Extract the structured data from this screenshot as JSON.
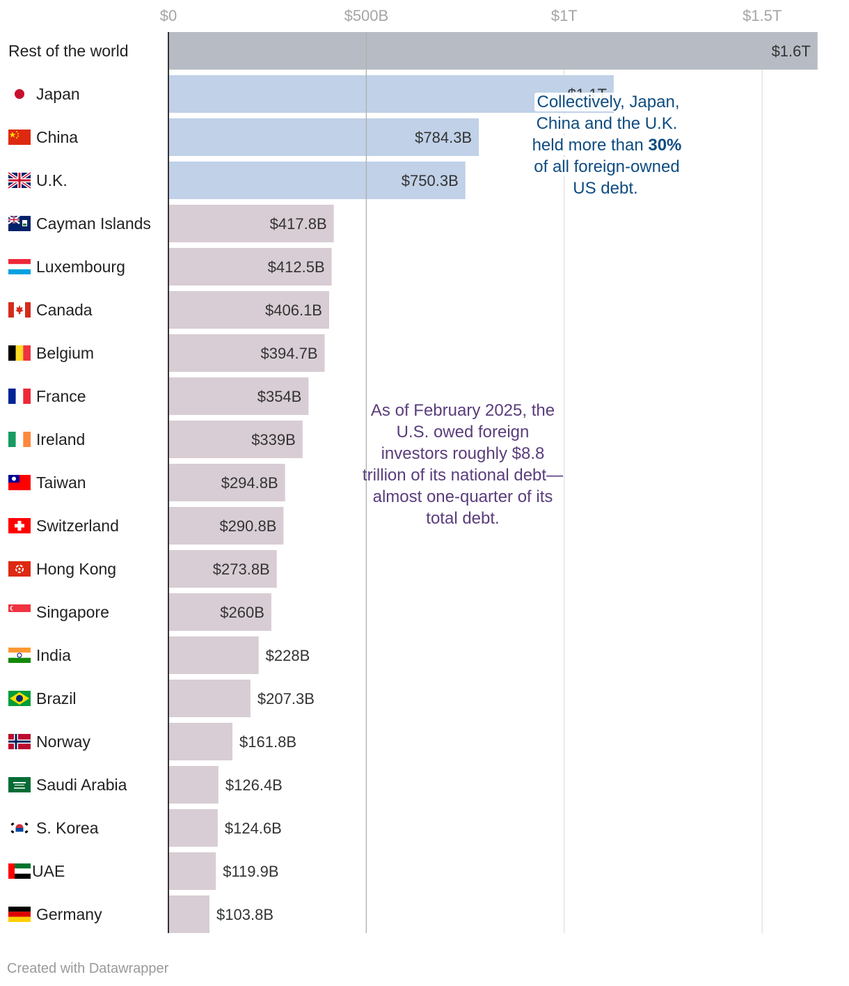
{
  "chart_data": {
    "type": "bar",
    "orientation": "horizontal",
    "title": "",
    "xlabel": "",
    "ylabel": "",
    "xlim": [
      0,
      1640
    ],
    "ticks": [
      {
        "value": 0,
        "label": "$0"
      },
      {
        "value": 500,
        "label": "$500B"
      },
      {
        "value": 1000,
        "label": "$1T"
      },
      {
        "value": 1500,
        "label": "$1.5T"
      }
    ],
    "unit": "billions USD",
    "rows": [
      {
        "name": "Rest of the world",
        "value": 1640,
        "label": "$1.6T",
        "group": "rest",
        "flag": ""
      },
      {
        "name": "Japan",
        "value": 1125,
        "label": "$1.1T",
        "group": "top3",
        "flag": "japan-flag-icon"
      },
      {
        "name": "China",
        "value": 784.3,
        "label": "$784.3B",
        "group": "top3",
        "flag": "china-flag-icon"
      },
      {
        "name": "U.K.",
        "value": 750.3,
        "label": "$750.3B",
        "group": "top3",
        "flag": "uk-flag-icon"
      },
      {
        "name": "Cayman Islands",
        "value": 417.8,
        "label": "$417.8B",
        "group": "other",
        "flag": "cayman-islands-flag-icon"
      },
      {
        "name": "Luxembourg",
        "value": 412.5,
        "label": "$412.5B",
        "group": "other",
        "flag": "luxembourg-flag-icon"
      },
      {
        "name": "Canada",
        "value": 406.1,
        "label": "$406.1B",
        "group": "other",
        "flag": "canada-flag-icon"
      },
      {
        "name": "Belgium",
        "value": 394.7,
        "label": "$394.7B",
        "group": "other",
        "flag": "belgium-flag-icon"
      },
      {
        "name": "France",
        "value": 354,
        "label": "$354B",
        "group": "other",
        "flag": "france-flag-icon"
      },
      {
        "name": "Ireland",
        "value": 339,
        "label": "$339B",
        "group": "other",
        "flag": "ireland-flag-icon"
      },
      {
        "name": "Taiwan",
        "value": 294.8,
        "label": "$294.8B",
        "group": "other",
        "flag": "taiwan-flag-icon"
      },
      {
        "name": "Switzerland",
        "value": 290.8,
        "label": "$290.8B",
        "group": "other",
        "flag": "switzerland-flag-icon"
      },
      {
        "name": "Hong Kong",
        "value": 273.8,
        "label": "$273.8B",
        "group": "other",
        "flag": "hong-kong-flag-icon"
      },
      {
        "name": "Singapore",
        "value": 260,
        "label": "$260B",
        "group": "other",
        "flag": "singapore-flag-icon"
      },
      {
        "name": "India",
        "value": 228,
        "label": "$228B",
        "group": "other",
        "flag": "india-flag-icon"
      },
      {
        "name": "Brazil",
        "value": 207.3,
        "label": "$207.3B",
        "group": "other",
        "flag": "brazil-flag-icon"
      },
      {
        "name": "Norway",
        "value": 161.8,
        "label": "$161.8B",
        "group": "other",
        "flag": "norway-flag-icon"
      },
      {
        "name": "Saudi Arabia",
        "value": 126.4,
        "label": "$126.4B",
        "group": "other",
        "flag": "saudi-arabia-flag-icon"
      },
      {
        "name": "S. Korea",
        "value": 124.6,
        "label": "$124.6B",
        "group": "other",
        "flag": "south-korea-flag-icon"
      },
      {
        "name": "UAE",
        "value": 119.9,
        "label": "$119.9B",
        "group": "other",
        "flag": "uae-flag-icon"
      },
      {
        "name": "Germany",
        "value": 103.8,
        "label": "$103.8B",
        "group": "other",
        "flag": "germany-flag-icon"
      }
    ],
    "colors": {
      "rest": "#b7bcc4",
      "top3": "#c0d1e8",
      "other": "#d8cdd4",
      "gridline": "#dddddd",
      "gridline_mid": "#b0b0b0",
      "baseline": "#333333"
    }
  },
  "annotations": {
    "top3": {
      "pre": "Collectively, Japan, China and the U.K. held more than ",
      "bold": "30%",
      "post": " of all foreign-owned US debt."
    },
    "summary": "As of February 2025, the U.S. owed foreign investors roughly $8.8 trillion of its national debt—almost one-quarter of its total debt."
  },
  "footer": "Created with Datawrapper"
}
